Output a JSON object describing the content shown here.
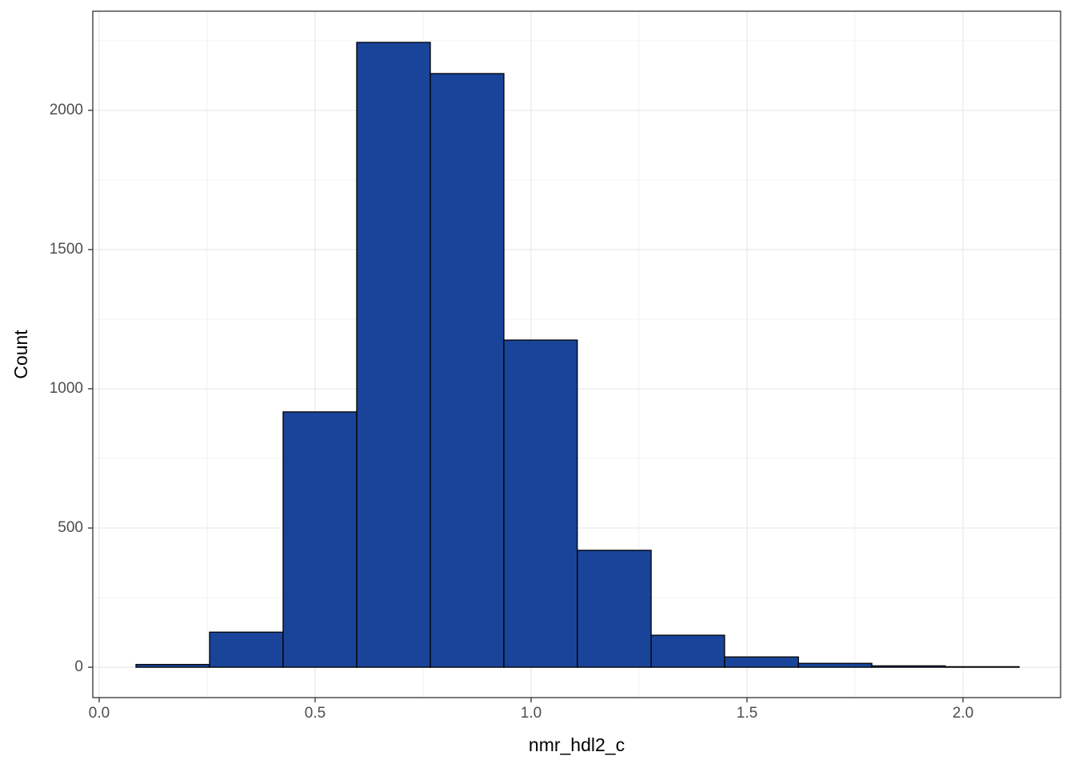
{
  "chart_data": {
    "type": "histogram",
    "xlabel": "nmr_hdl2_c",
    "ylabel": "Count",
    "bins": [
      0.0852,
      0.2556,
      0.4259,
      0.5963,
      0.7667,
      0.937,
      1.107,
      1.278,
      1.448,
      1.619,
      1.789,
      1.959,
      2.13
    ],
    "values": [
      10,
      126,
      917,
      2244,
      2132,
      1175,
      420,
      115,
      37,
      14,
      5,
      2
    ],
    "color": "#19449a",
    "edgecolor": "#000000",
    "xlim": [
      -0.0148,
      2.226
    ],
    "ylim": [
      -109,
      2356
    ],
    "xticks": [
      {
        "value": 0,
        "label": "0.0"
      },
      0.5,
      {
        "value": 1,
        "label": "1.0"
      },
      1.5,
      {
        "value": 2,
        "label": "2.0"
      }
    ],
    "yticks": [
      0,
      500,
      1000,
      1500,
      2000
    ],
    "xminorticks": [
      0.25,
      0.75,
      1.25,
      1.75
    ],
    "yminorticks": [
      250,
      750,
      1250,
      1750,
      2250
    ],
    "grid": true
  }
}
